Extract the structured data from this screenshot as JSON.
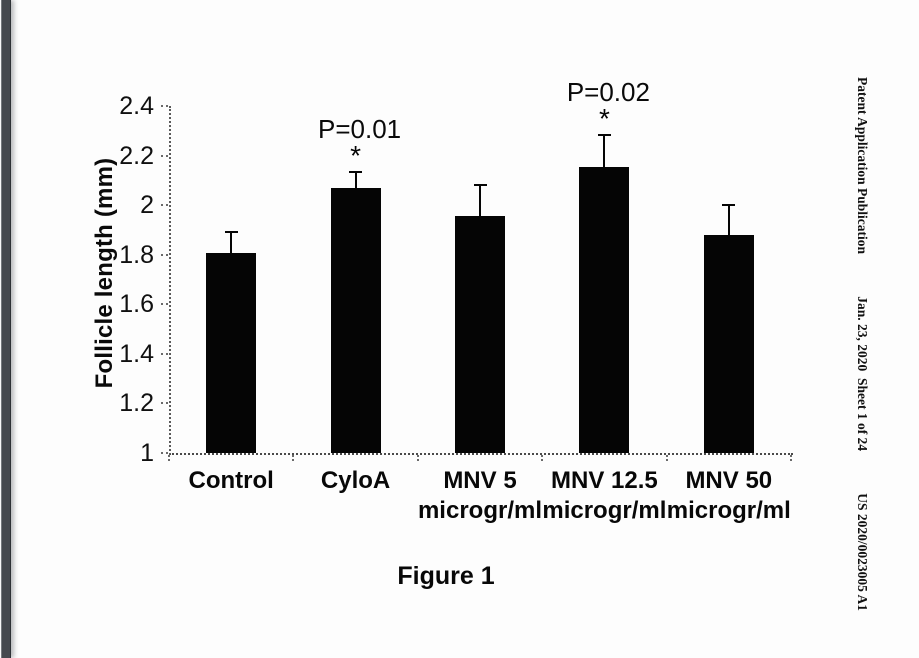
{
  "page": {
    "background": "#fdfdfd",
    "edge_bar_color": "#45494e"
  },
  "patent_header": {
    "publication": "Patent Application Publication",
    "date_sheet": "Jan. 23, 2020  Sheet 1 of 24",
    "doc_number": "US 2020/0023005 A1"
  },
  "figure_caption": "Figure 1",
  "chart_data": {
    "type": "bar",
    "title": "",
    "xlabel": "",
    "ylabel": "Follicle length (mm)",
    "ylim": [
      1,
      2.4
    ],
    "yticks": [
      1,
      1.2,
      1.4,
      1.6,
      1.8,
      2,
      2.2,
      2.4
    ],
    "grid": false,
    "legend": null,
    "bar_color": "#050505",
    "axis_color": "#4a4a4a",
    "categories": [
      "Control",
      "CyloA",
      "MNV 5 microgr/ml",
      "MNV 12.5 microgr/ml",
      "MNV 50 microgr/ml"
    ],
    "category_lines": [
      [
        "Control"
      ],
      [
        "CyloA"
      ],
      [
        "MNV 5",
        "microgr/ml"
      ],
      [
        "MNV 12.5",
        "microgr/ml"
      ],
      [
        "MNV 50",
        "microgr/ml"
      ]
    ],
    "values": [
      1.805,
      2.07,
      1.955,
      2.155,
      1.88
    ],
    "errors_plus": [
      0.085,
      0.065,
      0.125,
      0.13,
      0.12
    ],
    "annotations": [
      {
        "category_index": 1,
        "p_label": "P=0.01",
        "star": "*"
      },
      {
        "category_index": 3,
        "p_label": "P=0.02",
        "star": "*"
      }
    ]
  }
}
